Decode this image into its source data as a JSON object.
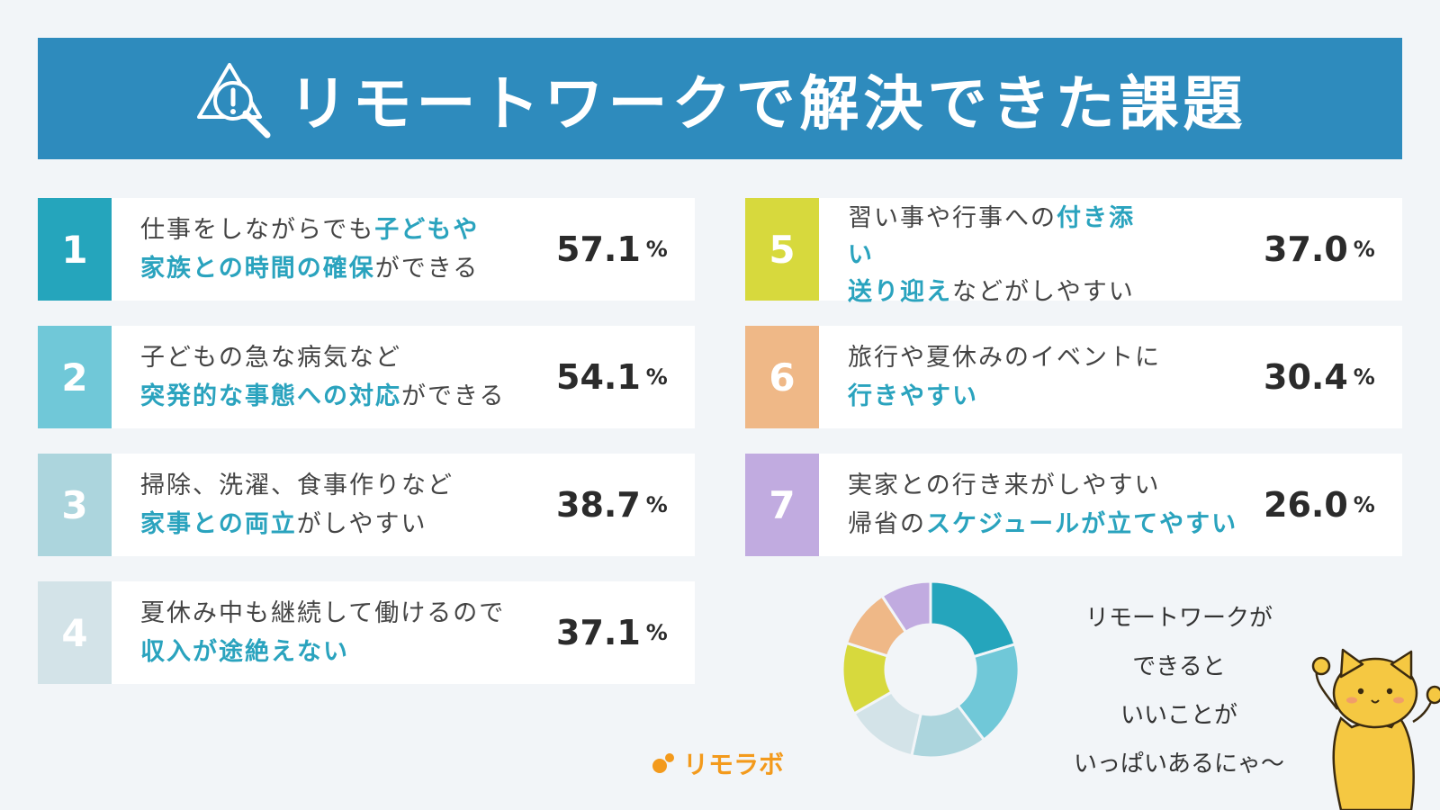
{
  "banner": {
    "title": "リモートワークで解決できた課題",
    "icon": "warning-search-icon"
  },
  "colors": {
    "banner": "#2e8bbd",
    "highlight": "#2aa3be",
    "logo": "#f39a1c",
    "item1": "#25a5bc",
    "item2": "#70c8d8",
    "item3": "#acd5dd",
    "item4": "#d3e3e8",
    "item5": "#d7d93d",
    "item6": "#efb887",
    "item7": "#c1abe0"
  },
  "items": [
    {
      "rank": "1",
      "line1_a": "仕事をしながらでも",
      "line1_b": "子どもや",
      "line2_a": "家族との時間の確保",
      "line2_b": "ができる",
      "percent": "57.1",
      "unit": "%"
    },
    {
      "rank": "2",
      "line1_a": "子どもの急な病気など",
      "line1_b": "",
      "line2_a": "突発的な事態への対応",
      "line2_b": "ができる",
      "percent": "54.1",
      "unit": "%"
    },
    {
      "rank": "3",
      "line1_a": "掃除、洗濯、食事作りなど",
      "line1_b": "",
      "line2_a": "家事との両立",
      "line2_b": "がしやすい",
      "percent": "38.7",
      "unit": "%"
    },
    {
      "rank": "4",
      "line1_a": "夏休み中も継続して働けるので",
      "line1_b": "",
      "line2_a": "収入が途絶えない",
      "line2_b": "",
      "percent": "37.1",
      "unit": "%"
    },
    {
      "rank": "5",
      "line1_a": "習い事や行事への",
      "line1_b": "付き添",
      "line2_a": "い",
      "line2_b": "",
      "line3_a": "送り迎え",
      "line3_b": "などがしやすい",
      "percent": "37.0",
      "unit": "%"
    },
    {
      "rank": "6",
      "line1_a": "旅行や夏休みのイベントに",
      "line1_b": "",
      "line2_a": "行きやすい",
      "line2_b": "",
      "percent": "30.4",
      "unit": "%"
    },
    {
      "rank": "7",
      "line1_a": "実家との行き来がしやすい",
      "line1_b": "",
      "line2_a": "帰省の",
      "line2_b": "スケジュールが立てやすい",
      "percent": "26.0",
      "unit": "%"
    }
  ],
  "chart_data": {
    "type": "pie",
    "style": "donut",
    "categories": [
      "子どもや家族との時間の確保ができる",
      "突発的な事態への対応ができる",
      "家事との両立がしやすい",
      "収入が途絶えない",
      "付き添い送り迎えなどがしやすい",
      "旅行や夏休みのイベントに行きやすい",
      "帰省のスケジュールが立てやすい"
    ],
    "values": [
      57.1,
      54.1,
      38.7,
      37.1,
      37.0,
      30.4,
      26.0
    ],
    "colors": [
      "#25a5bc",
      "#70c8d8",
      "#acd5dd",
      "#d3e3e8",
      "#d7d93d",
      "#efb887",
      "#c1abe0"
    ],
    "title": "",
    "legend": "none"
  },
  "speech": {
    "line1": "リモートワークが",
    "line2": "できると",
    "line3": "いいことが",
    "line4": "いっぱいあるにゃ〜"
  },
  "logo": {
    "text": "リモラボ"
  },
  "mascot": {
    "icon": "cat-mascot-icon"
  }
}
